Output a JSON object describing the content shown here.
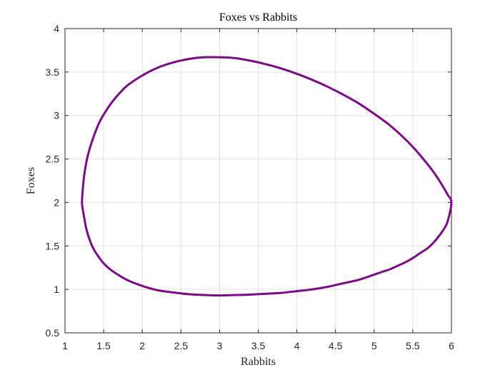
{
  "chart_data": {
    "type": "line",
    "title": "Foxes vs Rabbits",
    "xlabel": "Rabbits",
    "ylabel": "Foxes",
    "xlim": [
      1,
      6
    ],
    "ylim": [
      0.5,
      4
    ],
    "xticks": [
      1,
      1.5,
      2,
      2.5,
      3,
      3.5,
      4,
      4.5,
      5,
      5.5,
      6
    ],
    "yticks": [
      0.5,
      1,
      1.5,
      2,
      2.5,
      3,
      3.5,
      4
    ],
    "xtick_labels": [
      "1",
      "1.5",
      "2",
      "2.5",
      "3",
      "3.5",
      "4",
      "4.5",
      "5",
      "5.5",
      "6"
    ],
    "ytick_labels": [
      "0.5",
      "1",
      "1.5",
      "2",
      "2.5",
      "3",
      "3.5",
      "4"
    ],
    "grid": true,
    "legend": "none",
    "series": [
      {
        "color": "#7b0a86",
        "x": [
          6.0,
          5.95,
          5.9,
          5.8,
          5.7,
          5.6,
          5.5,
          5.4,
          5.3,
          5.2,
          5.1,
          5.0,
          4.8,
          4.6,
          4.4,
          4.2,
          4.0,
          3.8,
          3.6,
          3.4,
          3.2,
          3.0,
          2.8,
          2.6,
          2.4,
          2.2,
          2.0,
          1.8,
          1.6,
          1.5,
          1.4,
          1.35,
          1.3,
          1.27,
          1.25,
          1.23,
          1.22,
          1.23,
          1.25,
          1.28,
          1.32,
          1.38,
          1.45,
          1.55,
          1.65,
          1.8,
          2.0,
          2.2,
          2.4,
          2.6,
          2.8,
          3.0,
          3.2,
          3.4,
          3.6,
          3.8,
          4.0,
          4.2,
          4.4,
          4.6,
          4.8,
          5.0,
          5.2,
          5.4,
          5.55,
          5.7,
          5.8,
          5.9,
          5.95,
          6.0
        ],
        "y": [
          2.0,
          1.78,
          1.69,
          1.57,
          1.48,
          1.42,
          1.36,
          1.31,
          1.27,
          1.23,
          1.2,
          1.17,
          1.11,
          1.07,
          1.03,
          1.0,
          0.98,
          0.96,
          0.95,
          0.94,
          0.935,
          0.93,
          0.935,
          0.945,
          0.965,
          0.99,
          1.04,
          1.11,
          1.22,
          1.3,
          1.42,
          1.5,
          1.62,
          1.72,
          1.82,
          1.92,
          2.0,
          2.15,
          2.32,
          2.48,
          2.62,
          2.78,
          2.93,
          3.08,
          3.2,
          3.34,
          3.46,
          3.55,
          3.61,
          3.65,
          3.67,
          3.67,
          3.66,
          3.63,
          3.59,
          3.54,
          3.48,
          3.41,
          3.33,
          3.24,
          3.14,
          3.02,
          2.89,
          2.73,
          2.59,
          2.43,
          2.31,
          2.17,
          2.09,
          2.0
        ]
      }
    ]
  }
}
